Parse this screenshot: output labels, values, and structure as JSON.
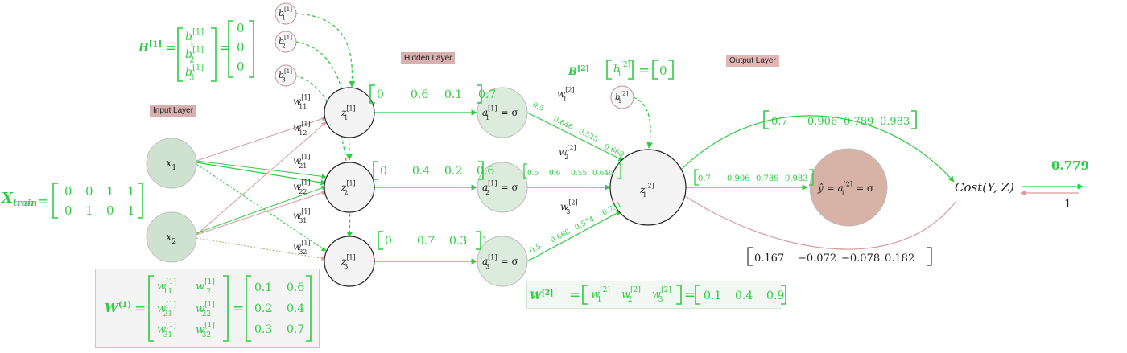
{
  "colors": {
    "green": "#2ecc40",
    "dark_green": "#23a832",
    "pink": "#d89a9a",
    "input_fill": "#cfe2cf",
    "hidden_activation_fill": "#dcecdc",
    "output_fill": "#d9b2a6",
    "neuron_fill": "#f4f4f4",
    "text": "#222222"
  },
  "layers": {
    "input": "Input Layer",
    "hidden": "Hidden Layer",
    "output": "Output Layer"
  },
  "x_train": {
    "label": "X",
    "label_sub": "train",
    "rows": [
      [
        "0",
        "0",
        "1",
        "1"
      ],
      [
        "0",
        "1",
        "0",
        "1"
      ]
    ]
  },
  "input_nodes": [
    {
      "base": "x",
      "sub": "1"
    },
    {
      "base": "x",
      "sub": "2"
    }
  ],
  "bias1": {
    "label": "B",
    "label_sup": "[1]",
    "symbols": [
      {
        "base": "b",
        "sub": "1",
        "sup": "[1]"
      },
      {
        "base": "b",
        "sub": "2",
        "sup": "[1]"
      },
      {
        "base": "b",
        "sub": "3",
        "sup": "[1]"
      }
    ],
    "values": [
      "0",
      "0",
      "0"
    ]
  },
  "bias_bubbles": [
    {
      "base": "b",
      "sub": "1",
      "sup": "[1]"
    },
    {
      "base": "b",
      "sub": "2",
      "sup": "[1]"
    },
    {
      "base": "b",
      "sub": "3",
      "sup": "[1]"
    }
  ],
  "weight_labels_1": [
    {
      "base": "w",
      "sub": "11",
      "sup": "[1]"
    },
    {
      "base": "w",
      "sub": "12",
      "sup": "[1]"
    },
    {
      "base": "w",
      "sub": "21",
      "sup": "[1]"
    },
    {
      "base": "w",
      "sub": "22",
      "sup": "[1]"
    },
    {
      "base": "w",
      "sub": "31",
      "sup": "[1]"
    },
    {
      "base": "w",
      "sub": "32",
      "sup": "[1]"
    }
  ],
  "hidden_z": [
    {
      "base": "z",
      "sub": "1",
      "sup": "[1]"
    },
    {
      "base": "z",
      "sub": "2",
      "sup": "[1]"
    },
    {
      "base": "z",
      "sub": "3",
      "sup": "[1]"
    }
  ],
  "hidden_z_values": [
    [
      "0",
      "0.6",
      "0.1",
      "0.7"
    ],
    [
      "0",
      "0.4",
      "0.2",
      "0.6"
    ],
    [
      "0",
      "0.7",
      "0.3",
      "1"
    ]
  ],
  "hidden_a": [
    {
      "base": "a",
      "sub": "1",
      "sup": "[1]",
      "tail": " = σ"
    },
    {
      "base": "a",
      "sub": "2",
      "sup": "[1]",
      "tail": " = σ"
    },
    {
      "base": "a",
      "sub": "3",
      "sup": "[1]",
      "tail": " = σ"
    }
  ],
  "hidden_a_values": [
    [
      "0.5",
      "0.646",
      "0.525",
      "0.668"
    ],
    [
      "0.5",
      "0.6",
      "0.55",
      "0.646"
    ],
    [
      "0.5",
      "0.668",
      "0.574",
      "0.731"
    ]
  ],
  "weight_labels_2": [
    {
      "base": "w",
      "sub": "1",
      "sup": "[2]"
    },
    {
      "base": "w",
      "sub": "2",
      "sup": "[2]"
    },
    {
      "base": "w",
      "sub": "3",
      "sup": "[2]"
    }
  ],
  "bias2": {
    "label": "B",
    "label_sup": "[2]",
    "symbol": {
      "base": "b",
      "sub": "1",
      "sup": "[2]"
    },
    "value": "0"
  },
  "output_z": {
    "base": "z",
    "sub": "1",
    "sup": "[2]"
  },
  "output_z_values": [
    "0.7",
    "0.906",
    "0.789",
    "0.983"
  ],
  "output_a": {
    "pre": "ŷ = ",
    "base": "a",
    "sub": "1",
    "sup": "[2]",
    "tail": " = σ"
  },
  "arc_values": [
    "0.7",
    "0.906",
    "0.789",
    "0.983"
  ],
  "gradient_values": [
    "0.167",
    "−0.072",
    "−0.078",
    "0.182"
  ],
  "cost": {
    "label": "Cost(Y, Z)",
    "value": "0.779",
    "gradient": "1"
  },
  "w1": {
    "label": "W",
    "label_sup": "(1)",
    "symbols": [
      [
        {
          "base": "w",
          "sub": "11",
          "sup": "[1]"
        },
        {
          "base": "w",
          "sub": "12",
          "sup": "[1]"
        }
      ],
      [
        {
          "base": "w",
          "sub": "21",
          "sup": "[1]"
        },
        {
          "base": "w",
          "sub": "22",
          "sup": "[1]"
        }
      ],
      [
        {
          "base": "w",
          "sub": "31",
          "sup": "[1]"
        },
        {
          "base": "w",
          "sub": "32",
          "sup": "[1]"
        }
      ]
    ],
    "values": [
      [
        "0.1",
        "0.6"
      ],
      [
        "0.2",
        "0.4"
      ],
      [
        "0.3",
        "0.7"
      ]
    ]
  },
  "w2": {
    "label": "W",
    "label_sup": "[2]",
    "symbols": [
      {
        "base": "w",
        "sub": "1",
        "sup": "[2]"
      },
      {
        "base": "w",
        "sub": "2",
        "sup": "[2]"
      },
      {
        "base": "w",
        "sub": "3",
        "sup": "[2]"
      }
    ],
    "values": [
      "0.1",
      "0.4",
      "0.9"
    ]
  }
}
